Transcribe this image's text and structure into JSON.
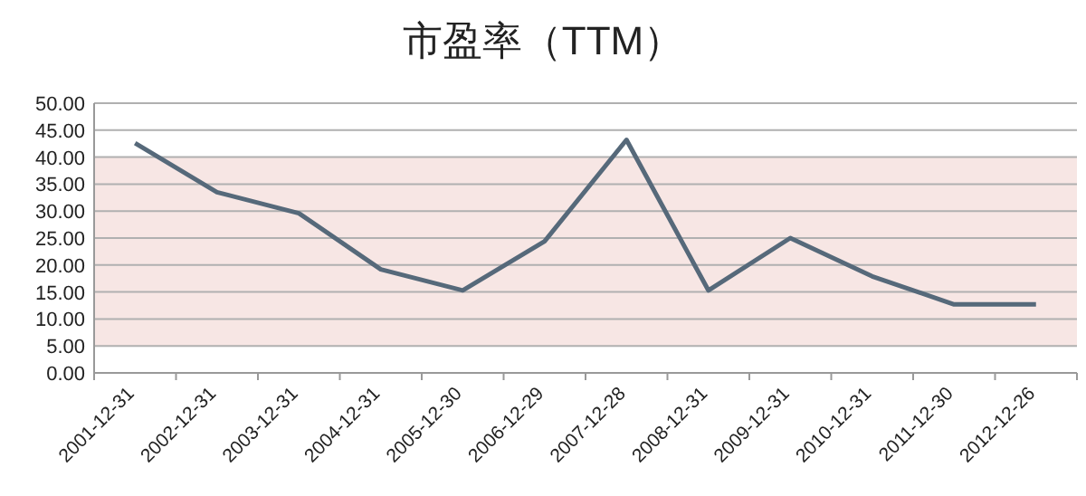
{
  "chart_data": {
    "type": "line",
    "title": "市盈率（TTM）",
    "categories": [
      "2001-12-31",
      "2002-12-31",
      "2003-12-31",
      "2004-12-31",
      "2005-12-30",
      "2006-12-29",
      "2007-12-28",
      "2008-12-31",
      "2009-12-31",
      "2010-12-31",
      "2011-12-30",
      "2012-12-26"
    ],
    "series": [
      {
        "color": "#56697a",
        "values": [
          42.6,
          33.5,
          29.6,
          19.2,
          15.3,
          24.4,
          43.2,
          15.3,
          25,
          17.9,
          12.7,
          12.7
        ]
      }
    ],
    "ylim": [
      0,
      50
    ],
    "yticks": [
      {
        "value": 0,
        "label": "0.00"
      },
      {
        "value": 5,
        "label": "5.00"
      },
      {
        "value": 10,
        "label": "10.00"
      },
      {
        "value": 15,
        "label": "15.00"
      },
      {
        "value": 20,
        "label": "20.00"
      },
      {
        "value": 25,
        "label": "25.00"
      },
      {
        "value": 30,
        "label": "30.00"
      },
      {
        "value": 35,
        "label": "35.00"
      },
      {
        "value": 40,
        "label": "40.00"
      },
      {
        "value": 45,
        "label": "45.00"
      },
      {
        "value": 50,
        "label": "50.00"
      }
    ],
    "bands": [
      {
        "axis": "y",
        "from": 5,
        "to": 40,
        "color": "#f7e6e4"
      }
    ],
    "grid": "y",
    "marker": "none",
    "line_style": "solid"
  }
}
